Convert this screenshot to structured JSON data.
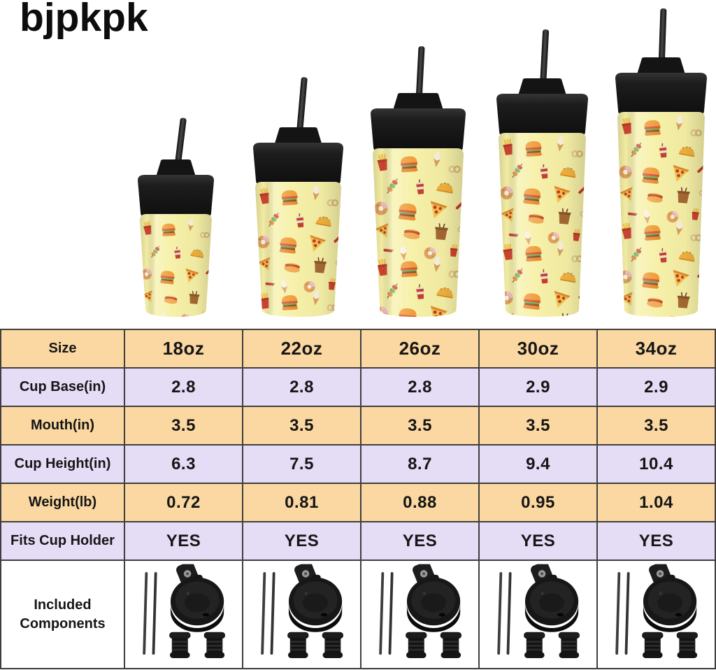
{
  "brand": {
    "logo_text": "bjpkpk"
  },
  "colors": {
    "row_peach": "#FBD8A1",
    "row_lavender": "#E5DCF6",
    "row_white": "#FFFFFF",
    "table_border": "#3F3F3F",
    "text": "#1C1C1C",
    "tumbler_body": "#F6F0A6",
    "tumbler_lid": "#1B1B1B",
    "straw": "#262626",
    "page_background": "#FFFFFF"
  },
  "products": {
    "sizes": [
      "18oz",
      "22oz",
      "26oz",
      "30oz",
      "34oz"
    ],
    "pattern": "fast-food-icons",
    "pattern_icons": [
      "burger-icon",
      "pizza-icon",
      "fries-icon",
      "donut-icon",
      "taco-icon",
      "hotdog-icon",
      "soda-cup-icon",
      "icecream-icon",
      "onion-rings-icon",
      "kebab-skewer-icon",
      "takeout-box-icon",
      "chili-pepper-icon"
    ]
  },
  "spec_table": {
    "rows": [
      {
        "label": "Size",
        "values": [
          "18oz",
          "22oz",
          "26oz",
          "30oz",
          "34oz"
        ]
      },
      {
        "label": "Cup Base(in)",
        "values": [
          "2.8",
          "2.8",
          "2.8",
          "2.9",
          "2.9"
        ]
      },
      {
        "label": "Mouth(in)",
        "values": [
          "3.5",
          "3.5",
          "3.5",
          "3.5",
          "3.5"
        ]
      },
      {
        "label": "Cup Height(in)",
        "values": [
          "6.3",
          "7.5",
          "8.7",
          "9.4",
          "10.4"
        ]
      },
      {
        "label": "Weight(lb)",
        "values": [
          "0.72",
          "0.81",
          "0.88",
          "0.95",
          "1.04"
        ]
      },
      {
        "label": "Fits Cup Holder",
        "values": [
          "YES",
          "YES",
          "YES",
          "YES",
          "YES"
        ]
      }
    ],
    "components_label": "Included Components",
    "components_items": [
      "straws-icon",
      "flip-lid-icon",
      "caps-icon"
    ]
  }
}
